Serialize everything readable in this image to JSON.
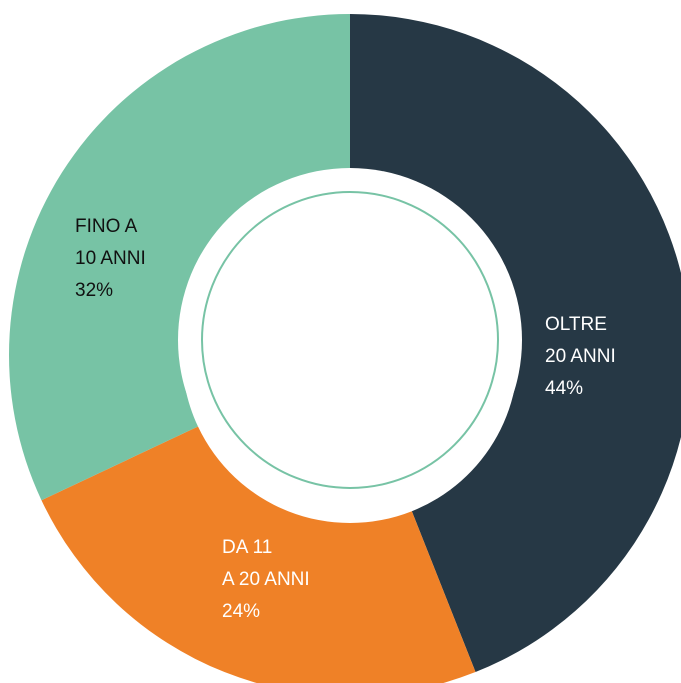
{
  "chart_data": {
    "type": "donut",
    "categories": [
      [
        "OLTRE",
        "20 ANNI"
      ],
      [
        "DA 11",
        "A 20 ANNI"
      ],
      [
        "FINO A",
        "10 ANNI"
      ]
    ],
    "values": [
      44,
      24,
      32
    ],
    "value_labels": [
      "44%",
      "24%",
      "32%"
    ],
    "colors": [
      "#263845",
      "#ef8127",
      "#77c3a5"
    ],
    "label_colors": [
      "#ffffff",
      "#ffffff",
      "#111111"
    ]
  }
}
